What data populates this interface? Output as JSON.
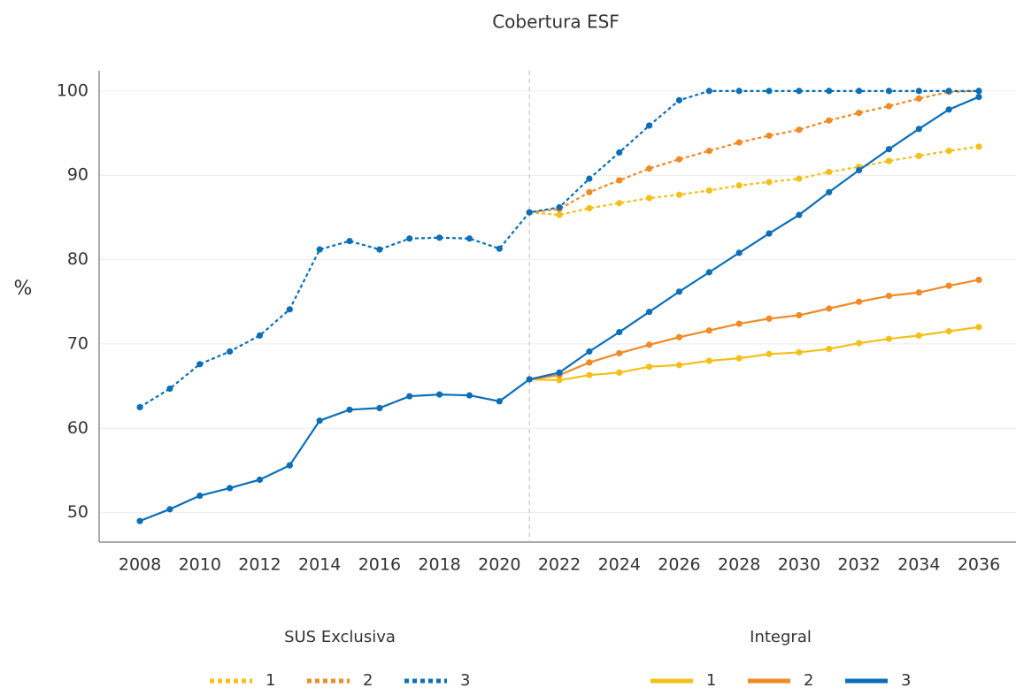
{
  "chart_data": {
    "type": "line",
    "title": "Cobertura ESF",
    "y_label": "%",
    "x": [
      2008,
      2009,
      2010,
      2011,
      2012,
      2013,
      2014,
      2015,
      2016,
      2017,
      2018,
      2019,
      2020,
      2021,
      2022,
      2023,
      2024,
      2025,
      2026,
      2027,
      2028,
      2029,
      2030,
      2031,
      2032,
      2033,
      2034,
      2035,
      2036
    ],
    "xlim": [
      2006.64,
      2037.24
    ],
    "xticks": [
      2008,
      2010,
      2012,
      2014,
      2016,
      2018,
      2020,
      2022,
      2024,
      2026,
      2028,
      2030,
      2032,
      2034,
      2036
    ],
    "ylim": [
      46.5,
      102.4
    ],
    "yticks": [
      50,
      60,
      70,
      80,
      90,
      100
    ],
    "grid": true,
    "vline": 2021,
    "series": [
      {
        "group": "SUS Exclusiva",
        "name": "1",
        "style": "dotted",
        "color": "#f5bf1a",
        "values": [
          null,
          null,
          null,
          null,
          null,
          null,
          null,
          null,
          null,
          null,
          null,
          null,
          null,
          85.6,
          85.3,
          86.1,
          86.7,
          87.3,
          87.7,
          88.2,
          88.8,
          89.2,
          89.6,
          90.4,
          91.0,
          91.7,
          92.3,
          92.9,
          93.4
        ]
      },
      {
        "group": "SUS Exclusiva",
        "name": "2",
        "style": "dotted",
        "color": "#f08a24",
        "values": [
          null,
          null,
          null,
          null,
          null,
          null,
          null,
          null,
          null,
          null,
          null,
          null,
          null,
          85.6,
          86.0,
          88.0,
          89.4,
          90.8,
          91.9,
          92.9,
          93.9,
          94.7,
          95.4,
          96.5,
          97.4,
          98.2,
          99.1,
          99.9,
          100
        ]
      },
      {
        "group": "SUS Exclusiva",
        "name": "3",
        "style": "dotted",
        "color": "#0b6fb8",
        "values": [
          62.5,
          64.7,
          67.6,
          69.1,
          71.0,
          74.1,
          81.2,
          82.2,
          81.2,
          82.5,
          82.6,
          82.5,
          81.3,
          85.6,
          86.2,
          89.6,
          92.7,
          95.9,
          98.9,
          100,
          100,
          100,
          100,
          100,
          100,
          100,
          100,
          100,
          100
        ]
      },
      {
        "group": "Integral",
        "name": "1",
        "style": "solid",
        "color": "#f5bf1a",
        "values": [
          null,
          null,
          null,
          null,
          null,
          null,
          null,
          null,
          null,
          null,
          null,
          null,
          null,
          65.8,
          65.7,
          66.3,
          66.6,
          67.3,
          67.5,
          68.0,
          68.3,
          68.8,
          69.0,
          69.4,
          70.1,
          70.6,
          71.0,
          71.5,
          72.0
        ]
      },
      {
        "group": "Integral",
        "name": "2",
        "style": "solid",
        "color": "#f08a24",
        "values": [
          null,
          null,
          null,
          null,
          null,
          null,
          null,
          null,
          null,
          null,
          null,
          null,
          null,
          65.8,
          66.3,
          67.8,
          68.9,
          69.9,
          70.8,
          71.6,
          72.4,
          73.0,
          73.4,
          74.2,
          75.0,
          75.7,
          76.1,
          76.9,
          77.6
        ]
      },
      {
        "group": "Integral",
        "name": "3",
        "style": "solid",
        "color": "#0b6fb8",
        "values": [
          49.0,
          50.4,
          52.0,
          52.9,
          53.9,
          55.6,
          60.9,
          62.2,
          62.4,
          63.8,
          64.0,
          63.9,
          63.2,
          65.8,
          66.6,
          69.1,
          71.4,
          73.8,
          76.2,
          78.5,
          80.8,
          83.1,
          85.3,
          88.0,
          90.6,
          93.1,
          95.5,
          97.8,
          99.3
        ]
      }
    ]
  }
}
